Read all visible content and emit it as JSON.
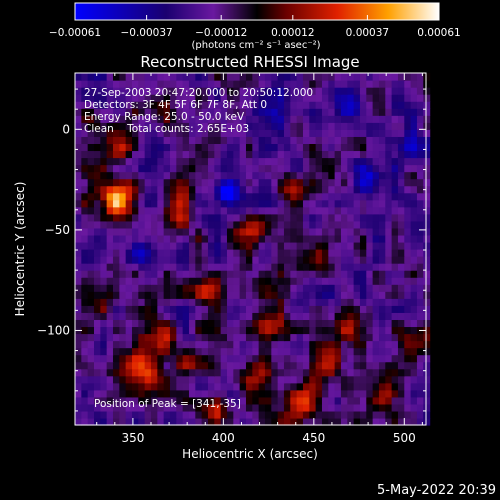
{
  "chart_data": {
    "type": "heatmap",
    "title": "Reconstructed RHESSI Image",
    "xlabel": "Heliocentric X (arcsec)",
    "ylabel": "Heliocentric Y (arcsec)",
    "xlim": [
      318,
      512
    ],
    "ylim": [
      -147,
      28
    ],
    "x_ticks": [
      350,
      400,
      450,
      500
    ],
    "y_ticks": [
      0,
      -50,
      -100
    ],
    "colorbar": {
      "ticks": [
        "-0.00061",
        "-0.00037",
        "-0.00012",
        "0.00012",
        "0.00037",
        "0.00061"
      ],
      "tick_values": [
        -0.00061,
        -0.00037,
        -0.00012,
        0.00012,
        0.00037,
        0.00061
      ],
      "range": [
        -0.00061,
        0.00061
      ],
      "unit_label": "(photons cm⁻² s⁻¹ asec⁻²)"
    },
    "annotations": [
      "27-Sep-2003 20:47:20.000 to 20:50:12.000",
      "Detectors: 3F 4F 5F 6F 7F 8F, Att 0",
      "Energy Range: 25.0 - 50.0 keV",
      "Clean    Total counts: 2.65E+03"
    ],
    "peak_label": "Position of Peak = [341,-35]",
    "peak": {
      "x": 341,
      "y": -35
    },
    "blobs": [
      {
        "x": 341,
        "y": -35,
        "sx": 6,
        "sy": 7,
        "v": 0.0007
      },
      {
        "x": 328,
        "y": -27,
        "sx": 5,
        "sy": 6,
        "v": 0.0003
      },
      {
        "x": 354,
        "y": -120,
        "sx": 9,
        "sy": 8,
        "v": 0.00052
      },
      {
        "x": 362,
        "y": -101,
        "sx": 7,
        "sy": 6,
        "v": 0.0004
      },
      {
        "x": 345,
        "y": -8,
        "sx": 7,
        "sy": 6,
        "v": 0.00034
      },
      {
        "x": 364,
        "y": 10,
        "sx": 6,
        "sy": 5,
        "v": 0.0003
      },
      {
        "x": 330,
        "y": 2,
        "sx": 6,
        "sy": 5,
        "v": 0.00028
      },
      {
        "x": 375,
        "y": -40,
        "sx": 6,
        "sy": 9,
        "v": 0.00036
      },
      {
        "x": 392,
        "y": -78,
        "sx": 8,
        "sy": 7,
        "v": 0.00032
      },
      {
        "x": 415,
        "y": -50,
        "sx": 6,
        "sy": 6,
        "v": 0.0003
      },
      {
        "x": 426,
        "y": -95,
        "sx": 7,
        "sy": 7,
        "v": 0.00032
      },
      {
        "x": 443,
        "y": -136,
        "sx": 8,
        "sy": 7,
        "v": 0.00045
      },
      {
        "x": 419,
        "y": -122,
        "sx": 7,
        "sy": 6,
        "v": 0.00035
      },
      {
        "x": 452,
        "y": -62,
        "sx": 6,
        "sy": 7,
        "v": 0.00028
      },
      {
        "x": 472,
        "y": -98,
        "sx": 6,
        "sy": 6,
        "v": 0.00033
      },
      {
        "x": 460,
        "y": -115,
        "sx": 6,
        "sy": 6,
        "v": 0.0003
      },
      {
        "x": 490,
        "y": -130,
        "sx": 7,
        "sy": 7,
        "v": 0.00036
      },
      {
        "x": 503,
        "y": -105,
        "sx": 6,
        "sy": 6,
        "v": 0.0003
      },
      {
        "x": 395,
        "y": -140,
        "sx": 7,
        "sy": 5,
        "v": 0.00034
      },
      {
        "x": 334,
        "y": -82,
        "sx": 6,
        "sy": 6,
        "v": 0.00026
      },
      {
        "x": 381,
        "y": -115,
        "sx": 6,
        "sy": 5,
        "v": 0.00027
      },
      {
        "x": 437,
        "y": -30,
        "sx": 5,
        "sy": 5,
        "v": 0.00024
      },
      {
        "x": 403,
        "y": -30,
        "sx": 5,
        "sy": 5,
        "v": -0.00058
      },
      {
        "x": 480,
        "y": -25,
        "sx": 7,
        "sy": 6,
        "v": -0.00025
      },
      {
        "x": 425,
        "y": 5,
        "sx": 7,
        "sy": 6,
        "v": -0.00022
      },
      {
        "x": 470,
        "y": 15,
        "sx": 6,
        "sy": 5,
        "v": -0.0002
      },
      {
        "x": 505,
        "y": -5,
        "sx": 6,
        "sy": 6,
        "v": -0.00022
      },
      {
        "x": 355,
        "y": -60,
        "sx": 6,
        "sy": 6,
        "v": -0.0002
      }
    ]
  },
  "footer_date": "5-May-2022 20:39"
}
